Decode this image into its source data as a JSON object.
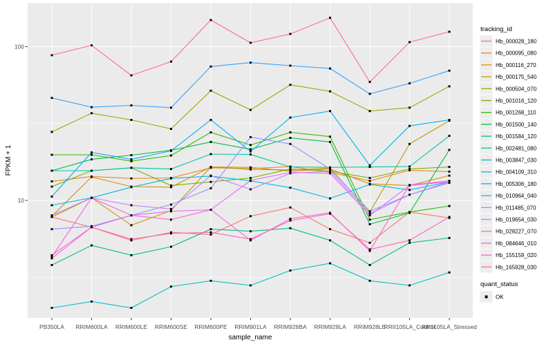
{
  "figure": {
    "xlabel": "sample_name",
    "ylabel": "FPKM + 1",
    "colors": {
      "panel_bg": "#EBEBEB",
      "grid": "#FFFFFF",
      "tick_label": "#4D4D4D",
      "tick_mark": "#333333",
      "point": "#000000",
      "legend_key_bg": "#EDEDED"
    }
  },
  "legend": {
    "title": "tracking_id"
  },
  "legend2": {
    "title": "quant_status",
    "items": [
      {
        "label": "OK",
        "shape": "small-black-square"
      }
    ]
  },
  "chart_data": {
    "type": "line",
    "title": "",
    "xlabel": "sample_name",
    "ylabel": "FPKM + 1",
    "yscale": "log10",
    "ylim": [
      1.7,
      181
    ],
    "yticks": [
      {
        "value": 100,
        "label": "100"
      },
      {
        "value": 10,
        "label": "10"
      }
    ],
    "yminor": [
      31.62,
      3.162
    ],
    "grid": true,
    "legend_position": "right",
    "point_marker": "small black square (quant_status = OK at every point)",
    "categories": [
      "PB350LA",
      "RRIM600LA",
      "RRIM600LE",
      "RRIM600SE",
      "RRIM600PE",
      "RRIM901LA",
      "RRIM928BA",
      "RRIM928LA",
      "RRIM928LE",
      "RRII105LA_Control",
      "RRII105LA_Stressed"
    ],
    "series": [
      {
        "name": "Hb_000028_180",
        "color": "#F8766D",
        "values": [
          7.8,
          6.7,
          5.5,
          6.2,
          6.0,
          7.9,
          9.0,
          6.5,
          5.3,
          8.4,
          7.7
        ]
      },
      {
        "name": "Hb_000095_080",
        "color": "#E88526",
        "values": [
          13.3,
          14.3,
          13.9,
          14.0,
          16.3,
          16.1,
          16.6,
          15.2,
          13.4,
          15.7,
          15.4
        ]
      },
      {
        "name": "Hb_000116_270",
        "color": "#D89000",
        "values": [
          7.9,
          14.2,
          12.3,
          12.2,
          16.5,
          16.4,
          15.5,
          16.0,
          12.8,
          12.5,
          14.5
        ]
      },
      {
        "name": "Hb_000175_540",
        "color": "#C09B00",
        "values": [
          7.8,
          10.4,
          6.9,
          8.6,
          16.5,
          15.9,
          15.8,
          16.2,
          8.4,
          23.3,
          33.0
        ]
      },
      {
        "name": "Hb_000504_070",
        "color": "#A3A500",
        "values": [
          27.9,
          36.9,
          33.4,
          29.2,
          51.7,
          38.8,
          56.5,
          51.2,
          38.1,
          40.1,
          55.2
        ]
      },
      {
        "name": "Hb_001016_120",
        "color": "#7CAE00",
        "values": [
          12.3,
          15.6,
          16.3,
          12.5,
          13.2,
          14.0,
          16.0,
          15.5,
          14.0,
          16.0,
          16.5
        ]
      },
      {
        "name": "Hb_001268_110",
        "color": "#39B600",
        "values": [
          19.8,
          19.8,
          18.0,
          19.6,
          27.7,
          22.9,
          27.7,
          26.0,
          7.5,
          8.4,
          9.2
        ]
      },
      {
        "name": "Hb_001500_140",
        "color": "#00BB4E",
        "values": [
          15.6,
          18.5,
          19.7,
          21.2,
          24.0,
          21.5,
          25.5,
          24.0,
          7.0,
          8.3,
          21.3
        ]
      },
      {
        "name": "Hb_001584_120",
        "color": "#00BF7D",
        "values": [
          3.8,
          5.1,
          4.4,
          5.0,
          6.5,
          6.3,
          6.6,
          5.5,
          3.8,
          5.3,
          5.7
        ]
      },
      {
        "name": "Hb_002481_080",
        "color": "#00C1A3",
        "values": [
          15.6,
          15.6,
          16.3,
          16.0,
          20.0,
          19.9,
          16.5,
          16.4,
          16.5,
          16.6,
          26.3
        ]
      },
      {
        "name": "Hb_003847_030",
        "color": "#00BFC4",
        "values": [
          2.0,
          2.2,
          2.0,
          2.75,
          3.0,
          2.8,
          3.5,
          3.9,
          3.0,
          2.8,
          3.4
        ]
      },
      {
        "name": "Hb_004109_310",
        "color": "#00BAE0",
        "values": [
          9.3,
          10.4,
          12.2,
          13.9,
          14.4,
          13.4,
          12.1,
          10.3,
          12.7,
          11.7,
          13.2
        ]
      },
      {
        "name": "Hb_005306_180",
        "color": "#00B0F6",
        "values": [
          10.6,
          20.5,
          18.5,
          21.0,
          33.4,
          20.8,
          34.6,
          38.1,
          16.9,
          30.5,
          33.4
        ]
      },
      {
        "name": "Hb_010964_040",
        "color": "#35A2FF",
        "values": [
          46.4,
          40.4,
          41.5,
          40.1,
          74.2,
          78.7,
          75.2,
          72.1,
          49.3,
          57.7,
          69.8
        ]
      },
      {
        "name": "Hb_011485_070",
        "color": "#9590FF",
        "values": [
          6.5,
          6.8,
          8.0,
          9.4,
          12.0,
          25.8,
          23.3,
          16.0,
          8.5,
          10.9,
          13.0
        ]
      },
      {
        "name": "Hb_019654_030",
        "color": "#C77CFF",
        "values": [
          8.0,
          10.4,
          9.3,
          8.8,
          14.5,
          11.8,
          15.0,
          15.5,
          8.2,
          10.9,
          13.2
        ]
      },
      {
        "name": "Hb_028227_070",
        "color": "#E76BF3",
        "values": [
          4.2,
          6.7,
          8.0,
          8.5,
          8.7,
          13.5,
          15.2,
          15.0,
          8.0,
          12.5,
          13.2
        ]
      },
      {
        "name": "Hb_084646_010",
        "color": "#FA62DB",
        "values": [
          4.3,
          10.4,
          8.0,
          7.5,
          8.7,
          5.5,
          7.6,
          8.3,
          4.7,
          12.6,
          13.4
        ]
      },
      {
        "name": "Hb_155159_020",
        "color": "#FF62BC",
        "values": [
          4.4,
          6.7,
          5.6,
          6.1,
          6.2,
          5.6,
          7.4,
          8.2,
          4.8,
          5.5,
          7.8
        ]
      },
      {
        "name": "Hb_165928_030",
        "color": "#FF6A98",
        "values": [
          88,
          102,
          65,
          80,
          149,
          106,
          121,
          154,
          59,
          107,
          125
        ]
      }
    ]
  }
}
